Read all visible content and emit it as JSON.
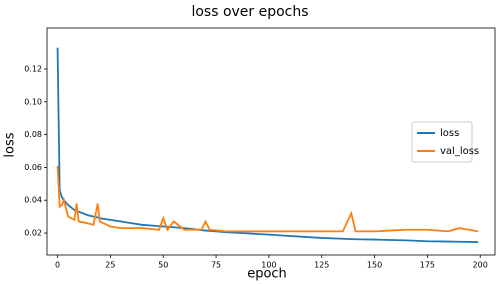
{
  "chart_data": {
    "type": "line",
    "title": "loss over epochs",
    "x_label": "epoch",
    "y_label": "loss",
    "x": [
      0,
      1,
      2,
      3,
      5,
      8,
      9,
      10,
      14,
      17,
      19,
      20,
      25,
      30,
      40,
      48,
      50,
      52,
      55,
      60,
      68,
      70,
      72,
      80,
      90,
      100,
      110,
      125,
      135,
      139,
      141,
      150,
      165,
      175,
      185,
      190,
      199
    ],
    "series": [
      {
        "name": "loss",
        "color": "#1f77b4",
        "values": [
          0.133,
          0.046,
          0.042,
          0.04,
          0.037,
          0.034,
          0.0335,
          0.033,
          0.031,
          0.03,
          0.0295,
          0.029,
          0.028,
          0.027,
          0.025,
          0.0242,
          0.024,
          0.0238,
          0.0235,
          0.023,
          0.0218,
          0.0215,
          0.0213,
          0.0205,
          0.0198,
          0.019,
          0.0182,
          0.017,
          0.0165,
          0.0163,
          0.0162,
          0.016,
          0.0155,
          0.015,
          0.0148,
          0.0147,
          0.0145
        ]
      },
      {
        "name": "val_loss",
        "color": "#ff7f0e",
        "values": [
          0.061,
          0.036,
          0.037,
          0.04,
          0.03,
          0.028,
          0.038,
          0.027,
          0.026,
          0.025,
          0.038,
          0.027,
          0.024,
          0.023,
          0.023,
          0.022,
          0.029,
          0.022,
          0.027,
          0.022,
          0.022,
          0.027,
          0.022,
          0.021,
          0.021,
          0.021,
          0.021,
          0.021,
          0.021,
          0.032,
          0.021,
          0.021,
          0.022,
          0.022,
          0.021,
          0.023,
          0.021
        ]
      }
    ],
    "xlim": [
      -5,
      207
    ],
    "xticks": [
      0,
      25,
      50,
      75,
      100,
      125,
      150,
      175,
      200
    ],
    "ylim": [
      0.0066,
      0.145
    ],
    "yticks": [
      0.02,
      0.04,
      0.06,
      0.08,
      {
        "value": 0.1,
        "label": "0.10"
      },
      0.12
    ],
    "legend": "center right"
  }
}
